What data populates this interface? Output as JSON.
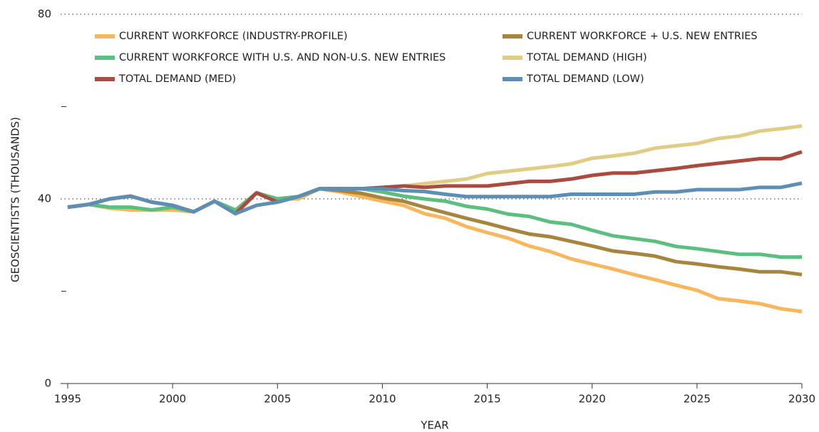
{
  "chart_data": {
    "type": "line",
    "x_label": "YEAR",
    "y_label": "GEOSCIENTISTS (THOUSANDS)",
    "x": [
      1995,
      1996,
      1997,
      1998,
      1999,
      2000,
      2001,
      2002,
      2003,
      2004,
      2005,
      2006,
      2007,
      2008,
      2009,
      2010,
      2011,
      2012,
      2013,
      2014,
      2015,
      2016,
      2017,
      2018,
      2019,
      2020,
      2021,
      2022,
      2023,
      2024,
      2025,
      2026,
      2027,
      2028,
      2029,
      2030
    ],
    "xlim": [
      1995,
      2030
    ],
    "xticks": [
      1995,
      2000,
      2005,
      2010,
      2015,
      2020,
      2025,
      2030
    ],
    "ylim": [
      0,
      80
    ],
    "yticks": [
      0,
      40,
      80
    ],
    "minor_yticks": [
      20,
      60
    ],
    "grid": true,
    "series": [
      {
        "name": "CURRENT WORKFORCE (INDUSTRY-PROFILE)",
        "color": "#f9b75d",
        "values": [
          38.2,
          38.8,
          38,
          37.6,
          37.6,
          37.6,
          37.2,
          39.5,
          36.8,
          41.3,
          40,
          40,
          42.2,
          41.5,
          40.5,
          39.5,
          38.6,
          36.8,
          35.8,
          34,
          32.7,
          31.5,
          29.8,
          28.6,
          27,
          25.9,
          24.8,
          23.6,
          22.5,
          21.3,
          20.2,
          18.4,
          17.9,
          17.3,
          16.2,
          15.6
        ]
      },
      {
        "name": "CURRENT WORKFORCE + U.S. NEW ENTRIES",
        "color": "#a8853c",
        "values": [
          38.2,
          38.8,
          40,
          40.6,
          39.3,
          38.6,
          37.2,
          39.5,
          36.8,
          41.3,
          40,
          40.5,
          42.2,
          41.8,
          41.2,
          40.2,
          39.5,
          38.2,
          37,
          35.8,
          34.7,
          33.5,
          32.4,
          31.8,
          30.8,
          29.8,
          28.7,
          28.2,
          27.6,
          26.4,
          25.9,
          25.3,
          24.8,
          24.2,
          24.2,
          23.6
        ]
      },
      {
        "name": "CURRENT WORKFORCE WITH U.S. AND NON-U.S. NEW ENTRIES",
        "color": "#5bbf7f",
        "values": [
          38.2,
          38.8,
          38.2,
          38.2,
          37.6,
          38.2,
          37.2,
          39.5,
          37.6,
          41.3,
          40,
          40.5,
          42.2,
          42.2,
          42.2,
          41.5,
          40.6,
          40,
          39.5,
          38.4,
          37.8,
          36.7,
          36.2,
          35,
          34.5,
          33.2,
          32,
          31.4,
          30.8,
          29.7,
          29.2,
          28.6,
          28,
          28,
          27.4,
          27.4
        ]
      },
      {
        "name": "TOTAL DEMAND (HIGH)",
        "color": "#e0cc82",
        "values": [
          38.2,
          38.8,
          40,
          40.6,
          39.3,
          38.6,
          37.2,
          39.5,
          36.8,
          38.6,
          39.3,
          40.5,
          42.2,
          42.2,
          42.2,
          42.2,
          42.8,
          43.3,
          43.8,
          44.3,
          45.5,
          46,
          46.5,
          47,
          47.6,
          48.8,
          49.3,
          49.9,
          51,
          51.5,
          52,
          53.1,
          53.6,
          54.7,
          55.2,
          55.8
        ]
      },
      {
        "name": "TOTAL DEMAND (MED)",
        "color": "#a94b3e",
        "values": [
          38.2,
          38.8,
          40,
          40.6,
          39.3,
          38.6,
          37.2,
          39.5,
          36.8,
          41.3,
          39.3,
          40.5,
          42.2,
          42.2,
          42.2,
          42.5,
          42.8,
          42.5,
          42.8,
          42.8,
          42.8,
          43.3,
          43.8,
          43.8,
          44.3,
          45.1,
          45.6,
          45.6,
          46.1,
          46.6,
          47.2,
          47.7,
          48.2,
          48.7,
          48.7,
          50.2
        ]
      },
      {
        "name": "TOTAL DEMAND (LOW)",
        "color": "#5b8fb5",
        "values": [
          38.2,
          38.8,
          40,
          40.6,
          39.3,
          38.6,
          37.2,
          39.5,
          36.8,
          38.6,
          39.3,
          40.5,
          42.2,
          42.2,
          42.2,
          42.2,
          41.8,
          41.6,
          41,
          40.5,
          40.5,
          40.5,
          40.5,
          40.5,
          41,
          41,
          41,
          41,
          41.5,
          41.5,
          42,
          42,
          42,
          42.5,
          42.5,
          43.4
        ]
      }
    ]
  }
}
